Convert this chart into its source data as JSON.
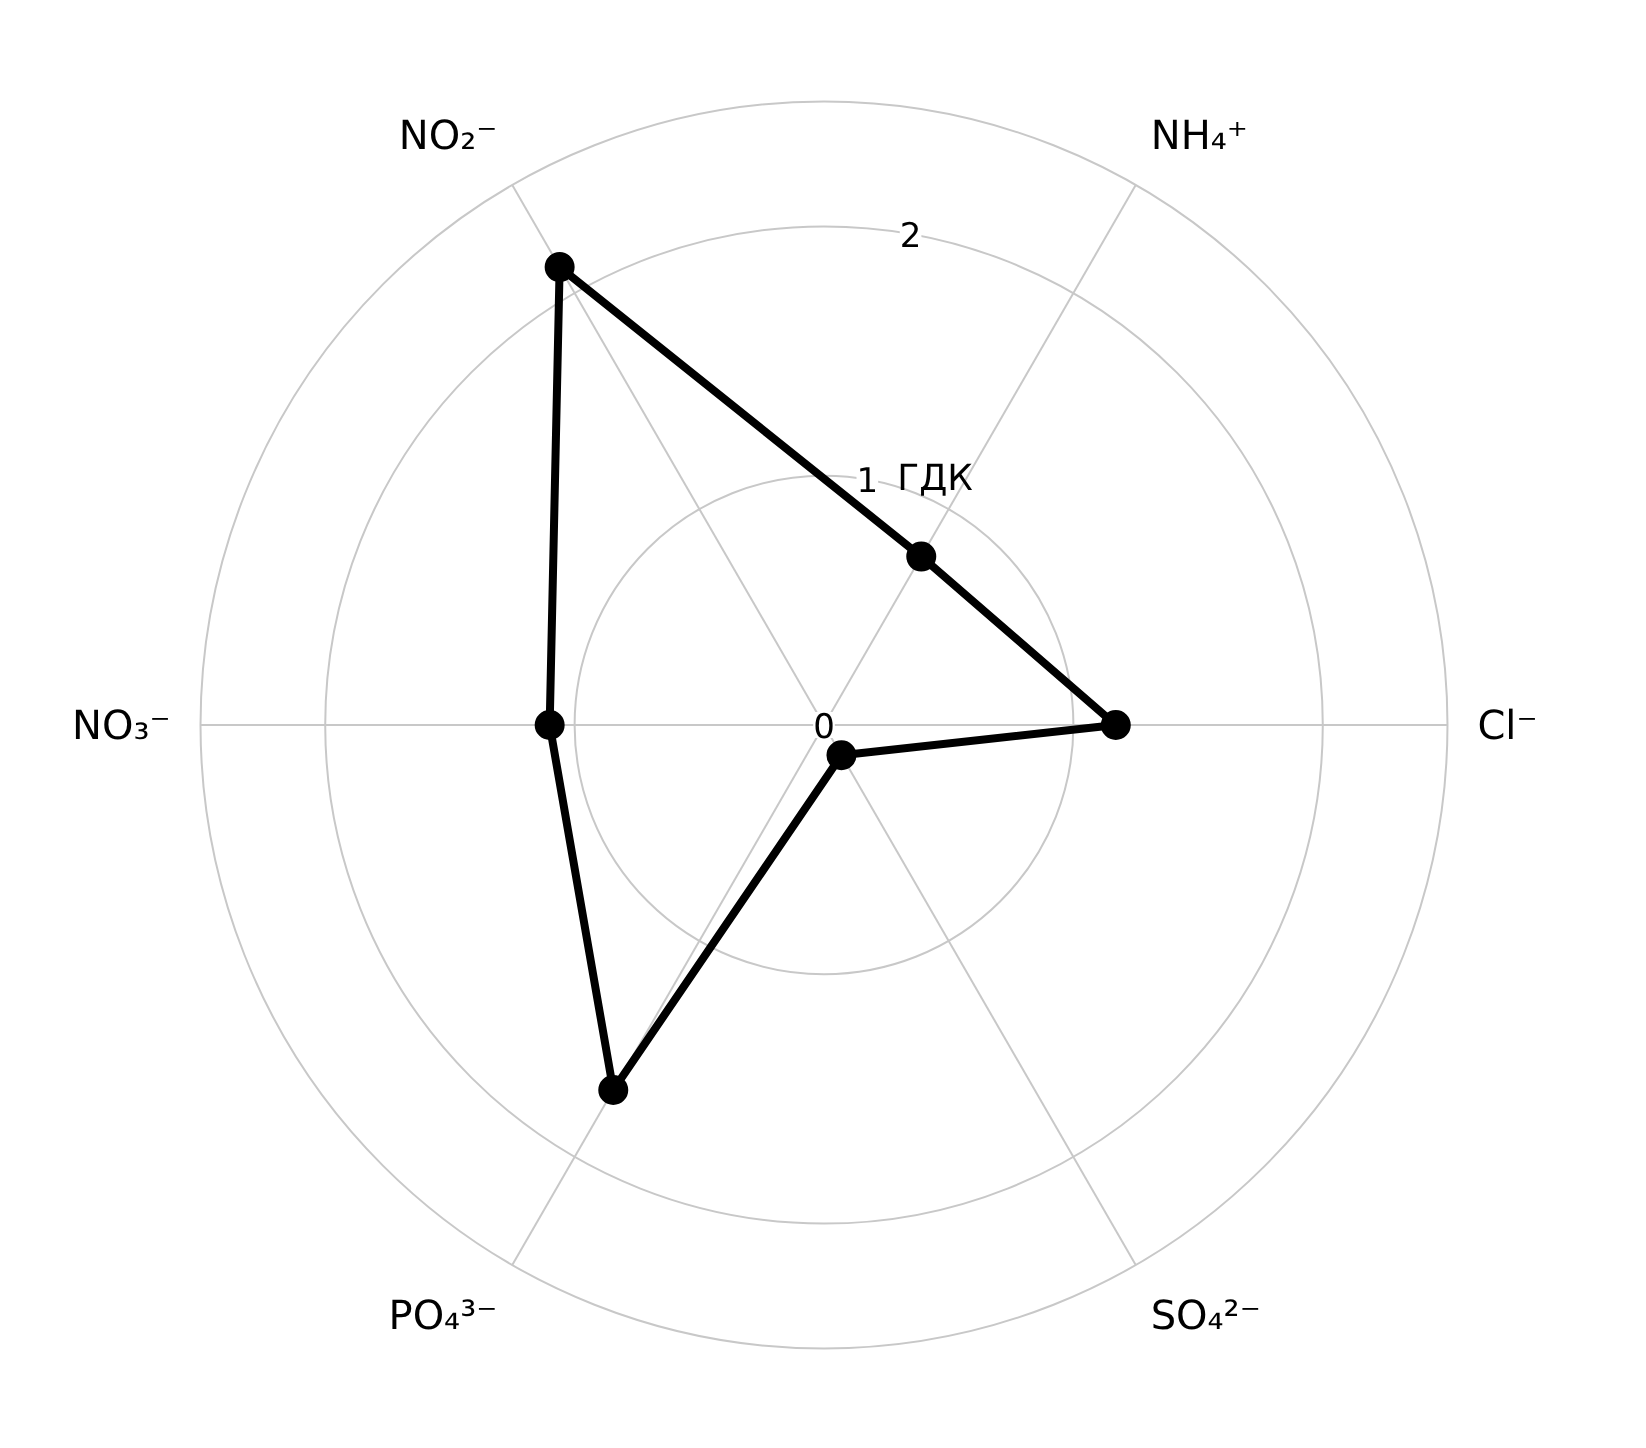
{
  "chart_data": {
    "type": "radar",
    "categories": [
      "NH₄⁺",
      "Cl⁻",
      "SO₄²⁻",
      "PO₄³⁻",
      "NO₃⁻",
      "NO₂⁻"
    ],
    "series": [
      {
        "color": "#000000",
        "values": [
          0.78,
          1.17,
          0.14,
          1.69,
          1.1,
          2.12
        ]
      }
    ],
    "ylim": [
      0,
      2.5
    ],
    "yticks": [
      0,
      1,
      2
    ],
    "annotations": [
      "ГДК"
    ],
    "grid": true,
    "marker": "circle",
    "line_style": "solid"
  }
}
